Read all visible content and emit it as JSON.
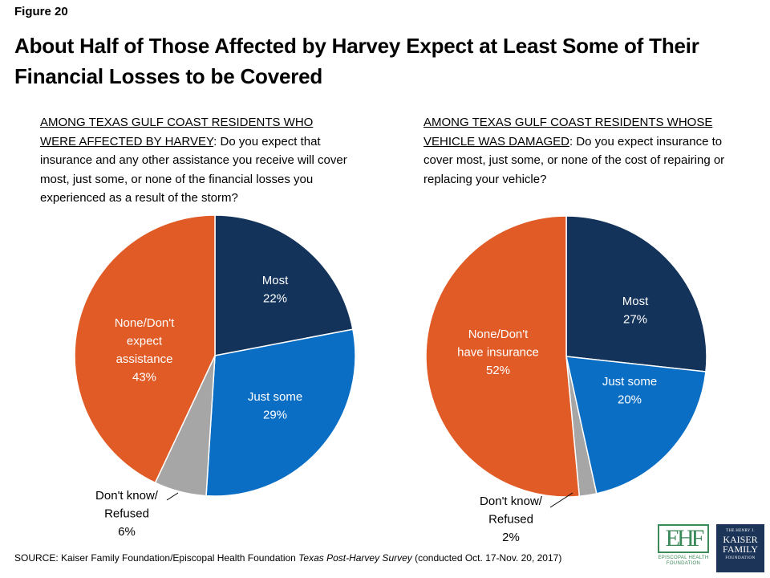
{
  "figure_label": "Figure 20",
  "title": "About Half of Those Affected by Harvey Expect at Least Some of Their Financial Losses to be Covered",
  "source": {
    "prefix": "SOURCE: Kaiser Family Foundation/Episcopal Health Foundation ",
    "survey": "Texas Post-Harvey Survey",
    "suffix": " (conducted Oct. 17-Nov. 20, 2017)"
  },
  "logos": {
    "ehf": "EPISCOPAL HEALTH FOUNDATION",
    "kff": [
      "THE HENRY J.",
      "KAISER",
      "FAMILY",
      "FOUNDATION"
    ]
  },
  "colors": {
    "most": "#13335a",
    "just_some": "#0a6ec4",
    "dont_know": "#a6a6a6",
    "none": "#e05b26"
  },
  "chart_data": [
    {
      "type": "pie",
      "question_lead": "AMONG TEXAS GULF COAST RESIDENTS WHO WERE AFFECTED BY HARVEY",
      "question_text": ": Do you expect that insurance and any other assistance you receive will cover most, just some, or none of the financial losses you experienced as a result of the storm?",
      "slices": [
        {
          "label": [
            "Most",
            "22%"
          ],
          "value": 22,
          "color": "#13335a"
        },
        {
          "label": [
            "Just some",
            "29%"
          ],
          "value": 29,
          "color": "#0a6ec4"
        },
        {
          "label": [
            "Don't know/",
            "Refused",
            "6%"
          ],
          "value": 6,
          "color": "#a6a6a6"
        },
        {
          "label": [
            "None/Don't",
            "expect",
            "assistance",
            "43%"
          ],
          "value": 43,
          "color": "#e05b26"
        }
      ]
    },
    {
      "type": "pie",
      "question_lead": "AMONG TEXAS GULF COAST RESIDENTS WHOSE VEHICLE WAS DAMAGED",
      "question_text": ": Do you expect insurance to cover most, just some, or none of the cost of repairing or replacing your vehicle?",
      "slices": [
        {
          "label": [
            "Most",
            "27%"
          ],
          "value": 27,
          "color": "#13335a"
        },
        {
          "label": [
            "Just some",
            "20%"
          ],
          "value": 20,
          "color": "#0a6ec4"
        },
        {
          "label": [
            "Don't know/",
            "Refused",
            "2%"
          ],
          "value": 2,
          "color": "#a6a6a6"
        },
        {
          "label": [
            "None/Don't",
            "have insurance",
            "52%"
          ],
          "value": 52,
          "color": "#e05b26"
        }
      ]
    }
  ]
}
